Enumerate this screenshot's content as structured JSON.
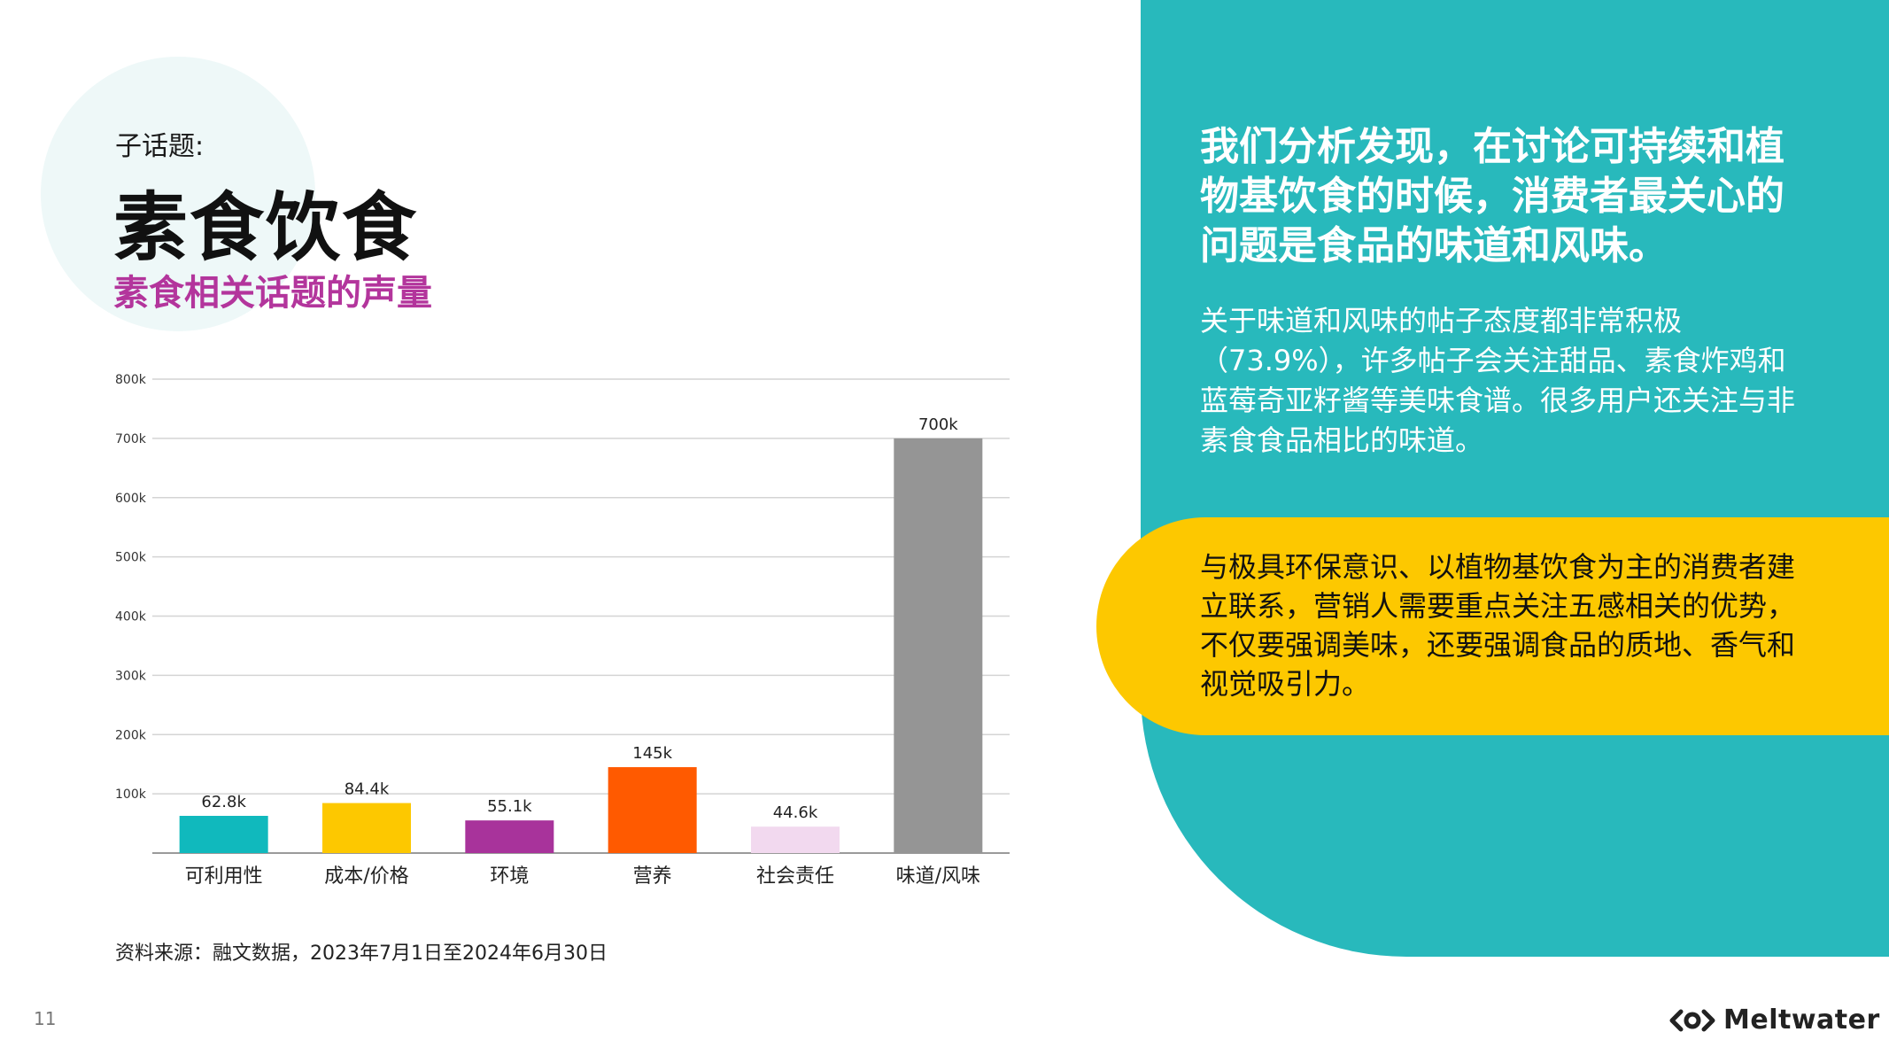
{
  "page": {
    "subtopic_label": "子话题:",
    "title": "素食饮食",
    "page_number": "11",
    "source": "资料来源：融文数据，2023年7月1日至2024年6月30日",
    "brand": "Meltwater"
  },
  "panel": {
    "headline": "我们分析发现，在讨论可持续和植物基饮食的时候，消费者最关心的问题是食品的味道和风味。",
    "body": "关于味道和风味的帖子态度都非常积极（73.9%），许多帖子会关注甜品、素食炸鸡和蓝莓奇亚籽酱等美味食谱。很多用户还关注与非素食食品相比的味道。",
    "callout": "与极具环保意识、以植物基饮食为主的消费者建立联系，营销人需要重点关注五感相关的优势，不仅要强调美味，还要强调食品的质地、香气和视觉吸引力。"
  },
  "colors": {
    "teal": "#28b9bc",
    "yellow": "#fdc800",
    "title_magenta": "#b3359c"
  },
  "icons": [
    "meltwater-logo-icon"
  ],
  "chart_data": {
    "type": "bar",
    "title": "素食相关话题的声量",
    "categories": [
      "可利用性",
      "成本/价格",
      "环境",
      "营养",
      "社会责任",
      "味道/风味"
    ],
    "values": [
      62800,
      84400,
      55100,
      145000,
      44600,
      700000
    ],
    "value_labels": [
      "62.8k",
      "84.4k",
      "55.1k",
      "145k",
      "44.6k",
      "700k"
    ],
    "bar_colors": [
      "#10b9bd",
      "#fdc800",
      "#a8339b",
      "#ff5a00",
      "#f2d9ef",
      "#959595"
    ],
    "y_ticks": [
      100000,
      200000,
      300000,
      400000,
      500000,
      600000,
      700000,
      800000
    ],
    "y_tick_labels": [
      "100k",
      "200k",
      "300k",
      "400k",
      "500k",
      "600k",
      "700k",
      "800k"
    ],
    "ylim": [
      0,
      800000
    ],
    "grid": true,
    "xlabel": "",
    "ylabel": ""
  }
}
